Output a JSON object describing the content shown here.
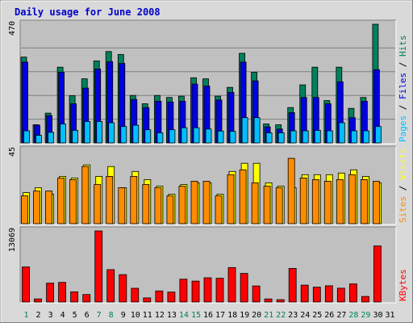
{
  "chart_data": {
    "type": "bar",
    "title": "Daily usage for June 2008",
    "colors": {
      "hits": "#00805c",
      "files": "#0000e0",
      "pages": "#00bfff",
      "visits": "#ffff00",
      "sites": "#ff8c00",
      "kbytes": "#ff0000",
      "weekend_day_label": "#00805c",
      "weekday_label": "#000000",
      "panel": "#c0c0c0",
      "frame": "#d9d9d9"
    },
    "days": [
      "1",
      "2",
      "3",
      "4",
      "5",
      "6",
      "7",
      "8",
      "9",
      "10",
      "11",
      "12",
      "13",
      "14",
      "15",
      "16",
      "17",
      "18",
      "19",
      "20",
      "21",
      "22",
      "23",
      "24",
      "25",
      "26",
      "27",
      "28",
      "29",
      "30",
      "31"
    ],
    "weekend_days": [
      1,
      7,
      8,
      14,
      15,
      21,
      22,
      28,
      29
    ],
    "panels": [
      {
        "id": "hits-files-pages",
        "ymax_label": "470",
        "ymax": 470,
        "right_label": [
          {
            "text": "Pages",
            "color": "#00bfff"
          },
          {
            "text": " / ",
            "color": "#000000"
          },
          {
            "text": "Files",
            "color": "#0000e0"
          },
          {
            "text": " / ",
            "color": "#000000"
          },
          {
            "text": "Hits",
            "color": "#00805c"
          }
        ],
        "series": [
          {
            "name": "Hits",
            "color": "#00805c",
            "values": [
              340,
              72,
              118,
              300,
              187,
              254,
              325,
              362,
              350,
              188,
              155,
              188,
              180,
              185,
              258,
              254,
              185,
              220,
              355,
              280,
              75,
              72,
              140,
              230,
              300,
              168,
              300,
              137,
              180,
              470
            ]
          },
          {
            "name": "Files",
            "color": "#0000e0",
            "values": [
              320,
              70,
              108,
              280,
              155,
              217,
              293,
              322,
              315,
              172,
              140,
              165,
              162,
              165,
              233,
              225,
              170,
              200,
              320,
              246,
              64,
              55,
              120,
              180,
              180,
              155,
              242,
              100,
              165,
              290
            ]
          },
          {
            "name": "Pages",
            "color": "#00bfff",
            "values": [
              48,
              30,
              42,
              75,
              50,
              85,
              85,
              80,
              65,
              70,
              52,
              40,
              52,
              60,
              60,
              55,
              47,
              46,
              100,
              100,
              40,
              40,
              48,
              48,
              50,
              48,
              80,
              48,
              48,
              65
            ]
          }
        ]
      },
      {
        "id": "visits-sites",
        "ymax_label": "45",
        "ymax": 45,
        "right_label": [
          {
            "text": "Sites",
            "color": "#ff8c00"
          },
          {
            "text": " / ",
            "color": "#000000"
          },
          {
            "text": "Visits",
            "color": "#ffff00"
          }
        ],
        "series": [
          {
            "name": "Visits",
            "color": "#ffff00",
            "values": [
              19,
              22,
              18,
              29,
              28,
              36,
              29,
              35,
              22,
              32,
              27,
              23,
              18,
              24,
              25,
              25,
              18,
              32,
              37,
              37,
              25,
              23,
              22,
              30,
              30,
              30,
              31,
              33,
              29,
              25
            ]
          },
          {
            "name": "Sites",
            "color": "#ff8c00",
            "values": [
              17,
              20,
              20,
              28,
              27,
              35,
              24,
              29,
              22,
              29,
              24,
              22,
              17,
              23,
              26,
              26,
              17,
              30,
              33,
              25,
              23,
              22,
              40,
              28,
              27,
              26,
              27,
              30,
              27,
              26
            ]
          }
        ]
      },
      {
        "id": "kbytes",
        "ymax_label": "13069",
        "ymax": 13069,
        "right_label": [
          {
            "text": "KBytes",
            "color": "#ff0000"
          }
        ],
        "series": [
          {
            "name": "KBytes",
            "color": "#ff0000",
            "values": [
              6450,
              570,
              3480,
              3610,
              1870,
              1380,
              13069,
              5960,
              5030,
              2520,
              760,
              2030,
              1830,
              4200,
              3840,
              4460,
              4360,
              6340,
              5260,
              2960,
              570,
              430,
              6180,
              3100,
              2730,
              2980,
              2540,
              3330,
              1030,
              10300
            ]
          }
        ]
      }
    ]
  }
}
